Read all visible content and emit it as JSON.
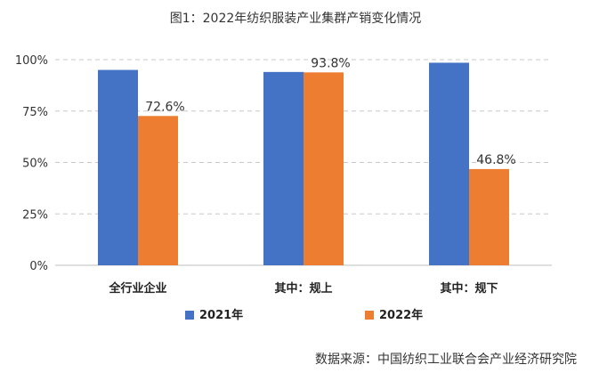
{
  "chart_data": {
    "type": "bar",
    "title": "图1：2022年纺织服装产业集群产销变化情况",
    "categories": [
      "全行业企业",
      "其中：规上",
      "其中：规下"
    ],
    "series": [
      {
        "name": "2021年",
        "color": "#4472C4",
        "values": [
          95.0,
          94.0,
          98.5
        ],
        "labels": [
          "",
          "",
          ""
        ]
      },
      {
        "name": "2022年",
        "color": "#ED7D31",
        "values": [
          72.6,
          93.8,
          46.8
        ],
        "labels": [
          "72.6%",
          "93.8%",
          "46.8%"
        ]
      }
    ],
    "ylim": [
      0,
      100
    ],
    "yticks": [
      "0%",
      "25%",
      "50%",
      "75%",
      "100%"
    ],
    "ytick_values": [
      0,
      25,
      50,
      75,
      100
    ],
    "grid": true,
    "legend_position": "bottom"
  },
  "source": "数据来源：中国纺织工业联合会产业经济研究院"
}
